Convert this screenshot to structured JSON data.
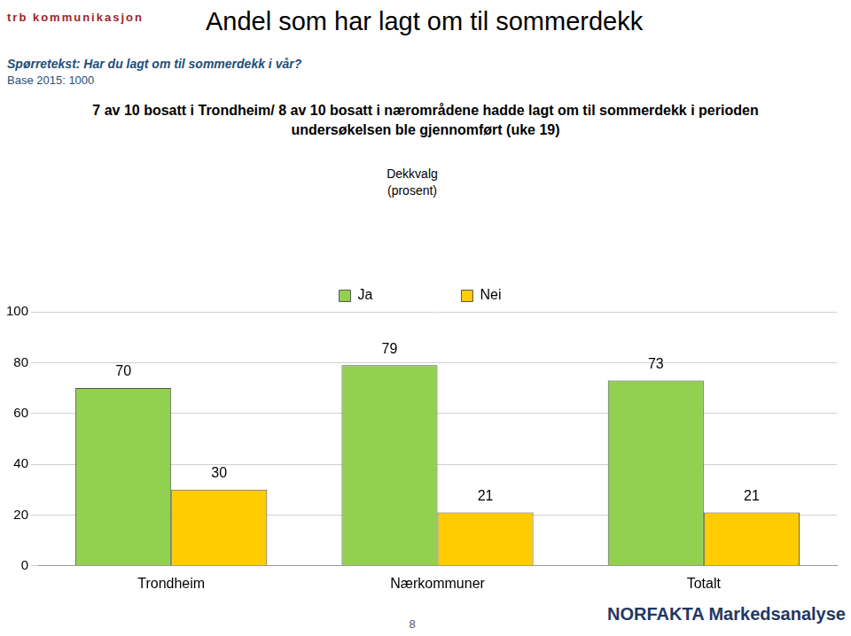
{
  "header": {
    "title": "Andel som har lagt om til sommerdekk",
    "question": "Spørretekst: Har du lagt om til sommerdekk i vår?",
    "base": "Base 2015: 1000",
    "logos": [
      "trb kommunikasjon",
      "NORFAKTA Markedsanalyse"
    ],
    "page_number": "8"
  },
  "chart_data": {
    "type": "bar",
    "subtitle": "7 av 10 bosatt i Trondheim/ 8 av 10 bosatt i nærområdene hadde lagt om til sommerdekk i perioden undersøkelsen ble gjennomført (uke 19)",
    "legend_title": "Dekkvalg (prosent)",
    "categories": [
      "Trondheim",
      "Nærkommuner",
      "Totalt"
    ],
    "series": [
      {
        "name": "Ja",
        "color": "#92d050",
        "values": [
          70,
          79,
          73
        ]
      },
      {
        "name": "Nei",
        "color": "#ffcc00",
        "values": [
          30,
          21,
          21
        ]
      }
    ],
    "ylim": [
      0,
      100
    ],
    "yticks": [
      0,
      20,
      40,
      60,
      80,
      100
    ],
    "grid": true,
    "legend": "top",
    "data_labels": true
  }
}
